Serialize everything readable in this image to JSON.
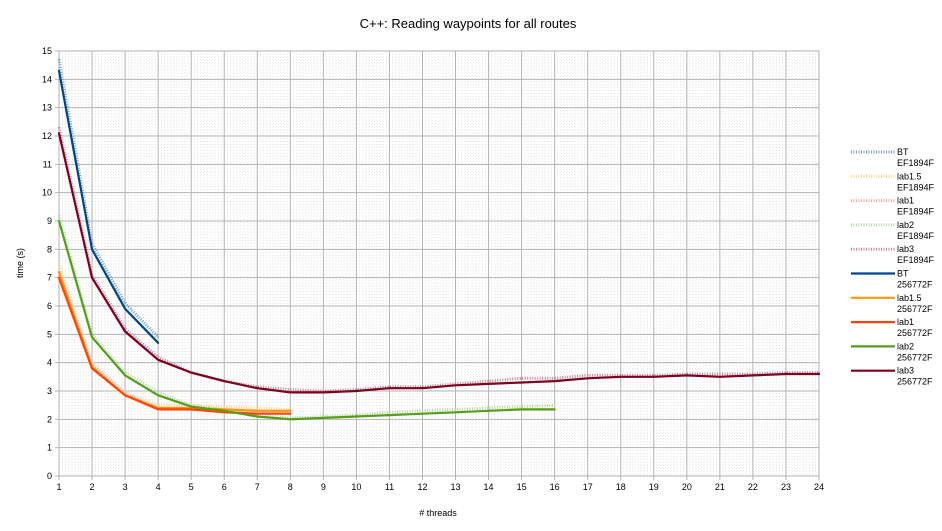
{
  "chart_data": {
    "type": "line",
    "title": "C++: Reading waypoints for all routes",
    "xlabel": "# threads",
    "ylabel": "time (s)",
    "xlim": [
      1,
      24
    ],
    "ylim": [
      0,
      15
    ],
    "xticks": [
      1,
      2,
      3,
      4,
      5,
      6,
      7,
      8,
      9,
      10,
      11,
      12,
      13,
      14,
      15,
      16,
      17,
      18,
      19,
      20,
      21,
      22,
      23,
      24
    ],
    "yticks": [
      0,
      1,
      2,
      3,
      4,
      5,
      6,
      7,
      8,
      9,
      10,
      11,
      12,
      13,
      14,
      15
    ],
    "grid": true,
    "legend_position": "right",
    "series": [
      {
        "name_line1": "BT",
        "name_line2": "EF1894F",
        "color": "#729fcf",
        "style": "dotted",
        "x": [
          1,
          2,
          3,
          4
        ],
        "y": [
          14.7,
          8.2,
          6.1,
          4.9
        ]
      },
      {
        "name_line1": "lab1.5",
        "name_line2": "EF1894F",
        "color": "#ffd28c",
        "style": "dotted",
        "x": [
          1,
          2,
          3,
          4,
          5,
          6,
          7,
          8
        ],
        "y": [
          7.5,
          4.0,
          2.95,
          2.5,
          2.5,
          2.45,
          2.4,
          2.35
        ]
      },
      {
        "name_line1": "lab1",
        "name_line2": "EF1894F",
        "color": "#f4a7a1",
        "style": "dotted",
        "x": [
          1,
          2,
          3,
          4,
          5,
          6,
          7,
          8
        ],
        "y": [
          7.2,
          3.9,
          2.9,
          2.4,
          2.35,
          2.3,
          2.3,
          2.25
        ]
      },
      {
        "name_line1": "lab2",
        "name_line2": "EF1894F",
        "color": "#b7d89e",
        "style": "dotted",
        "x": [
          1,
          2,
          3,
          4,
          5,
          6,
          7,
          8,
          9,
          10,
          11,
          12,
          13,
          14,
          15,
          16
        ],
        "y": [
          9.2,
          5.0,
          3.65,
          2.95,
          2.5,
          2.35,
          2.15,
          2.05,
          2.1,
          2.15,
          2.25,
          2.3,
          2.35,
          2.4,
          2.45,
          2.5
        ]
      },
      {
        "name_line1": "lab3",
        "name_line2": "EF1894F",
        "color": "#c9869b",
        "style": "dotted",
        "x": [
          1,
          2,
          3,
          4,
          5,
          6,
          7,
          8,
          9,
          10,
          11,
          12,
          13,
          14,
          15,
          16,
          17,
          18,
          19,
          20,
          21,
          22,
          23,
          24
        ],
        "y": [
          12.3,
          7.1,
          5.2,
          4.2,
          3.65,
          3.35,
          3.15,
          3.05,
          3.0,
          3.05,
          3.15,
          3.15,
          3.25,
          3.35,
          3.45,
          3.45,
          3.55,
          3.55,
          3.55,
          3.6,
          3.6,
          3.6,
          3.65,
          3.65
        ]
      },
      {
        "name_line1": "BT",
        "name_line2": "256772F",
        "color": "#004586",
        "style": "solid",
        "x": [
          1,
          2,
          3,
          4
        ],
        "y": [
          14.3,
          8.0,
          5.9,
          4.7
        ]
      },
      {
        "name_line1": "lab1.5",
        "name_line2": "256772F",
        "color": "#ff950e",
        "style": "solid",
        "x": [
          1,
          2,
          3,
          4,
          5,
          6,
          7,
          8
        ],
        "y": [
          7.2,
          3.85,
          2.85,
          2.4,
          2.4,
          2.35,
          2.3,
          2.3
        ]
      },
      {
        "name_line1": "lab1",
        "name_line2": "256772F",
        "color": "#ff420e",
        "style": "solid",
        "x": [
          1,
          2,
          3,
          4,
          5,
          6,
          7,
          8
        ],
        "y": [
          7.0,
          3.8,
          2.85,
          2.35,
          2.35,
          2.25,
          2.2,
          2.2
        ]
      },
      {
        "name_line1": "lab2",
        "name_line2": "256772F",
        "color": "#579d1c",
        "style": "solid",
        "x": [
          1,
          2,
          3,
          4,
          5,
          6,
          7,
          8,
          9,
          10,
          11,
          12,
          13,
          14,
          15,
          16
        ],
        "y": [
          9.0,
          4.9,
          3.55,
          2.85,
          2.45,
          2.3,
          2.1,
          2.0,
          2.05,
          2.1,
          2.15,
          2.2,
          2.25,
          2.3,
          2.35,
          2.35
        ]
      },
      {
        "name_line1": "lab3",
        "name_line2": "256772F",
        "color": "#7e0021",
        "style": "solid",
        "x": [
          1,
          2,
          3,
          4,
          5,
          6,
          7,
          8,
          9,
          10,
          11,
          12,
          13,
          14,
          15,
          16,
          17,
          18,
          19,
          20,
          21,
          22,
          23,
          24
        ],
        "y": [
          12.1,
          7.0,
          5.1,
          4.1,
          3.65,
          3.35,
          3.1,
          2.95,
          2.95,
          3.0,
          3.1,
          3.1,
          3.2,
          3.25,
          3.3,
          3.35,
          3.45,
          3.5,
          3.5,
          3.55,
          3.5,
          3.55,
          3.6,
          3.6
        ]
      }
    ]
  }
}
